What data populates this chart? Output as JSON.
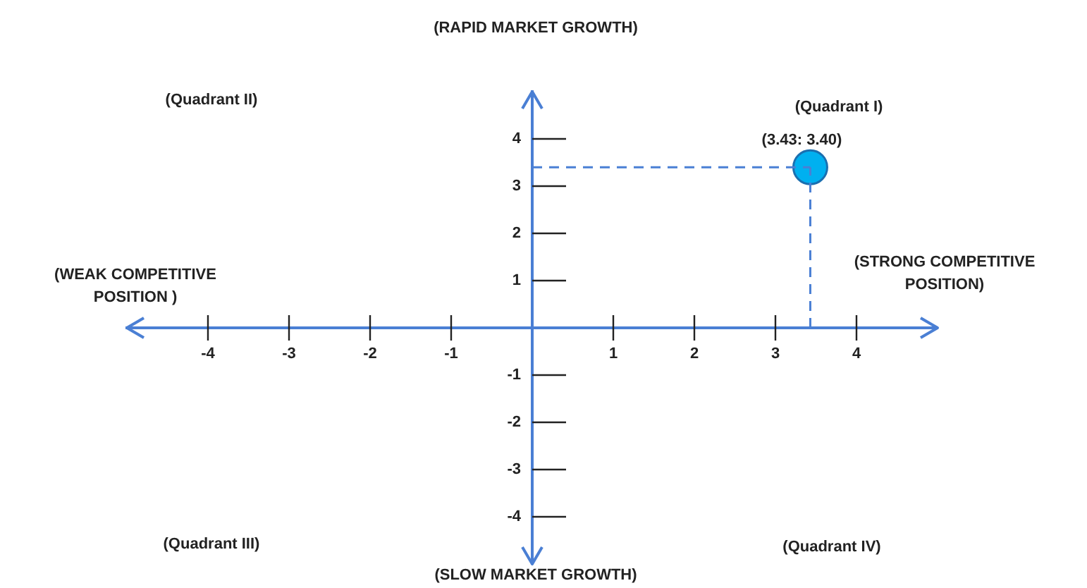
{
  "chart_data": {
    "type": "scatter",
    "x": [
      3.43
    ],
    "values": [
      3.4
    ],
    "color": "#00b0f0",
    "marker": "circle",
    "value_labels": [
      "(3.43: 3.40)"
    ],
    "ref_lines": [
      {
        "axis": "x",
        "value": 3.43,
        "line_style": "dashed",
        "color": "#4a7fd4"
      },
      {
        "axis": "y",
        "value": 3.4,
        "line_style": "dashed",
        "color": "#4a7fd4"
      }
    ],
    "xlim": [
      -5,
      5
    ],
    "ylim": [
      -5,
      5
    ],
    "xticks": [
      -4,
      -3,
      -2,
      -1,
      1,
      2,
      3,
      4
    ],
    "yticks": [
      -4,
      -3,
      -2,
      -1,
      1,
      2,
      3,
      4
    ],
    "annotations": [
      "(RAPID MARKET GROWTH)",
      "(SLOW MARKET GROWTH)",
      "(WEAK COMPETITIVE\nPOSITION )",
      "(STRONG COMPETITIVE\nPOSITION)",
      "(Quadrant I)",
      "(Quadrant II)",
      "(Quadrant III)",
      "(Quadrant IV)"
    ]
  }
}
